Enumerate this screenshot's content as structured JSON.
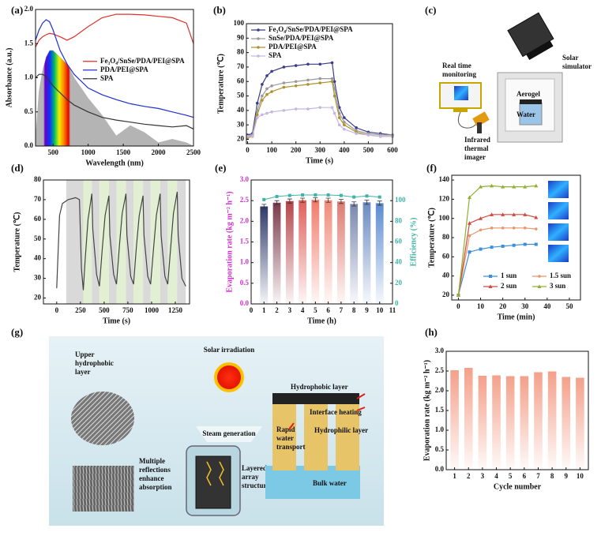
{
  "chart_data": [
    {
      "panel": "(a)",
      "type": "line",
      "xlabel": "Wavelength (nm)",
      "ylabel": "Absorbance (a.u.)",
      "x": [
        250,
        300,
        350,
        400,
        450,
        500,
        600,
        700,
        800,
        1000,
        1200,
        1400,
        1600,
        1800,
        2000,
        2200,
        2400,
        2500
      ],
      "xlim": [
        250,
        2500
      ],
      "xticks": [
        500,
        1000,
        1500,
        2000,
        2500
      ],
      "ylim": [
        0,
        2.0
      ],
      "yticks": [
        {
          "value": 0,
          "label": "0.0"
        },
        {
          "value": 0.5,
          "label": "0.5"
        },
        {
          "value": 1,
          "label": "1.0"
        },
        {
          "value": 1.5,
          "label": "1.5"
        },
        {
          "value": 2,
          "label": "2.0"
        }
      ],
      "area": {
        "color": "#b4b4b4",
        "values": [
          0.1,
          0.8,
          1.1,
          1.3,
          1.4,
          1.4,
          1.3,
          1.2,
          1.0,
          0.7,
          0.45,
          0.15,
          0.3,
          0.2,
          0.05,
          0.1,
          0.05,
          0
        ]
      },
      "legend": "center right",
      "series": [
        {
          "name": "Fe₃O₄/SnSe/PDA/PEI@SPA",
          "color": "#e0302a",
          "values": [
            1.45,
            1.55,
            1.6,
            1.63,
            1.65,
            1.64,
            1.6,
            1.55,
            1.6,
            1.75,
            1.88,
            1.93,
            1.93,
            1.92,
            1.9,
            1.88,
            1.8,
            1.5
          ]
        },
        {
          "name": "PDA/PEI@SPA",
          "color": "#1f2fd0",
          "values": [
            1.55,
            1.7,
            1.8,
            1.85,
            1.82,
            1.7,
            1.4,
            1.2,
            1.05,
            0.85,
            0.75,
            0.68,
            0.62,
            0.58,
            0.55,
            0.5,
            0.45,
            0.42
          ]
        },
        {
          "name": "SPA",
          "color": "#333333",
          "values": [
            1.0,
            1.05,
            1.05,
            1.02,
            0.95,
            0.88,
            0.78,
            0.68,
            0.6,
            0.5,
            0.42,
            0.38,
            0.35,
            0.32,
            0.3,
            0.28,
            0.3,
            0.25
          ]
        }
      ]
    },
    {
      "panel": "(b)",
      "type": "line",
      "xlabel": "Time (s)",
      "ylabel": "Temperature (℃)",
      "x": [
        0,
        20,
        40,
        60,
        80,
        100,
        150,
        200,
        250,
        300,
        350,
        360,
        380,
        400,
        450,
        500,
        550,
        600
      ],
      "xlim": [
        -5,
        600
      ],
      "xticks": [
        0,
        100,
        200,
        300,
        400,
        500,
        600
      ],
      "ylim": [
        17,
        100
      ],
      "yticks": [
        20,
        30,
        40,
        50,
        60,
        70,
        80,
        90,
        100
      ],
      "legend": "upper left",
      "series": [
        {
          "name": "Fe₃O₄/SnSe/PDA/PEI@SPA",
          "color": "#3a3c8c",
          "marker": "circle",
          "values": [
            23,
            24,
            45,
            58,
            64,
            67,
            70,
            71,
            72,
            72,
            73,
            60,
            42,
            35,
            28,
            25,
            24,
            23
          ]
        },
        {
          "name": "SnSe/PDA/PEI@SPA",
          "color": "#9a9a9a",
          "marker": "circle",
          "values": [
            22,
            23,
            40,
            50,
            55,
            57,
            59,
            60,
            61,
            62,
            62,
            55,
            38,
            32,
            26,
            24,
            23,
            23
          ]
        },
        {
          "name": "PDA/PEI@SPA",
          "color": "#b0922a",
          "marker": "circle",
          "values": [
            21,
            22,
            37,
            47,
            51,
            53,
            56,
            57,
            58,
            59,
            60,
            50,
            35,
            30,
            25,
            23,
            22,
            22
          ]
        },
        {
          "name": "SPA",
          "color": "#c7b6e2",
          "marker": "circle",
          "values": [
            22,
            22,
            35,
            37,
            38,
            39,
            40,
            41,
            41,
            42,
            42,
            38,
            30,
            27,
            24,
            23,
            22,
            22
          ]
        }
      ]
    },
    {
      "panel": "(d)",
      "type": "line",
      "xlabel": "Time (s)",
      "ylabel": "Temperature (℃)",
      "x": [
        0,
        30,
        60,
        120,
        200,
        240,
        260,
        280,
        300,
        330,
        370,
        380,
        420,
        450,
        480,
        510,
        550,
        560,
        600,
        630,
        660,
        690,
        730,
        740,
        780,
        810,
        840,
        870,
        910,
        920,
        960,
        990,
        1020,
        1050,
        1090,
        1100,
        1140,
        1170,
        1200,
        1230,
        1270,
        1280,
        1320,
        1360
      ],
      "xlim": [
        -140,
        1400
      ],
      "xticks": [
        0,
        250,
        500,
        750,
        1000,
        1250
      ],
      "ylim": [
        17,
        80
      ],
      "yticks": [
        20,
        30,
        40,
        50,
        60,
        70,
        80
      ],
      "bands": {
        "x": [
          100,
          280,
          370,
          450,
          550,
          630,
          730,
          810,
          910,
          990,
          1090,
          1170,
          1270,
          1360
        ],
        "colors": [
          "#d9d9d9",
          "#e2efd2",
          "#d9d9d9",
          "#e2efd2",
          "#d9d9d9",
          "#e2efd2",
          "#d9d9d9",
          "#e2efd2",
          "#d9d9d9",
          "#e2efd2",
          "#d9d9d9",
          "#e2efd2",
          "#d9d9d9"
        ]
      },
      "series": [
        {
          "color": "#444444",
          "values": [
            25,
            62,
            68,
            70,
            71,
            70,
            35,
            24,
            40,
            60,
            73,
            55,
            32,
            26,
            45,
            62,
            72,
            52,
            32,
            27,
            46,
            63,
            73,
            52,
            31,
            27,
            46,
            62,
            72,
            52,
            31,
            27,
            45,
            62,
            73,
            52,
            31,
            27,
            45,
            63,
            74,
            52,
            30,
            26
          ]
        }
      ]
    },
    {
      "panel": "(e)",
      "type": "bar",
      "xlabel": "Time (h)",
      "ylabel": "Evaporation rate (kg m⁻² h⁻¹)",
      "y2label": "Efficiency (%)",
      "ylabel_color": "#d02fcf",
      "y2_color": "#3fb3a6",
      "x": [
        1,
        2,
        3,
        4,
        5,
        6,
        7,
        8,
        9,
        10
      ],
      "xlim": [
        0,
        11
      ],
      "xticks": [
        0,
        1,
        2,
        3,
        4,
        5,
        6,
        7,
        8,
        9,
        10,
        11
      ],
      "ylim": [
        0,
        3.0
      ],
      "yticks": [
        {
          "value": 0,
          "label": "0.0"
        },
        {
          "value": 0.5,
          "label": "0.5"
        },
        {
          "value": 1,
          "label": "1.0"
        },
        {
          "value": 1.5,
          "label": "1.5"
        },
        {
          "value": 2,
          "label": "2.0"
        },
        {
          "value": 2.5,
          "label": "2.5"
        },
        {
          "value": 3,
          "label": "3.0"
        }
      ],
      "values": [
        2.36,
        2.45,
        2.49,
        2.51,
        2.52,
        2.51,
        2.48,
        2.42,
        2.46,
        2.44
      ],
      "errors": [
        0.05,
        0.05,
        0.05,
        0.05,
        0.05,
        0.05,
        0.05,
        0.05,
        0.05,
        0.05
      ],
      "colors": [
        "#2e3a6b",
        "#7a3a4a",
        "#b5454a",
        "#e0605a",
        "#f07a6a",
        "#f08a78",
        "#e07a70",
        "#7a88b0",
        "#6a8ac0",
        "#5a8ad0"
      ],
      "y2lim": [
        0,
        120
      ],
      "y2ticks": [
        0,
        20,
        40,
        60,
        80,
        100
      ],
      "y2_values": [
        101,
        104,
        105,
        105.5,
        105.5,
        105.5,
        105,
        103.5,
        104.5,
        103.5
      ]
    },
    {
      "panel": "(f)",
      "type": "line",
      "xlabel": "Time (min)",
      "ylabel": "Temperature (℃)",
      "x": [
        0,
        5,
        10,
        15,
        20,
        25,
        30,
        35
      ],
      "xlim": [
        -3,
        55
      ],
      "xticks": [
        0,
        10,
        20,
        30,
        40,
        50
      ],
      "ylim": [
        15,
        145
      ],
      "yticks": [
        20,
        40,
        60,
        80,
        100,
        120,
        140
      ],
      "legend": "lower center",
      "series": [
        {
          "name": "1 sun",
          "color": "#3b8fd8",
          "marker": "square",
          "values": [
            20,
            65,
            68,
            70,
            71,
            72,
            73,
            73
          ]
        },
        {
          "name": "1.5 sun",
          "color": "#e8956a",
          "marker": "circle",
          "values": [
            20,
            82,
            88,
            90,
            90,
            90,
            90,
            89
          ]
        },
        {
          "name": "2 sun",
          "color": "#d04a40",
          "marker": "triangle",
          "values": [
            20,
            95,
            100,
            104,
            104,
            104,
            104,
            101
          ]
        },
        {
          "name": "3 sun",
          "color": "#8fb030",
          "marker": "triangle",
          "values": [
            20,
            122,
            133,
            134,
            133,
            133,
            133,
            134
          ]
        }
      ]
    },
    {
      "panel": "(h)",
      "type": "bar",
      "xlabel": "Cycle number",
      "ylabel": "Evaporation rate (kg m⁻² h⁻¹)",
      "x": [
        1,
        2,
        3,
        4,
        5,
        6,
        7,
        8,
        9,
        10
      ],
      "xlim": [
        0.4,
        10.6
      ],
      "xticks": [
        1,
        2,
        3,
        4,
        5,
        6,
        7,
        8,
        9,
        10
      ],
      "ylim": [
        0,
        3.0
      ],
      "yticks": [
        {
          "value": 0,
          "label": "0.0"
        },
        {
          "value": 0.5,
          "label": "0.5"
        },
        {
          "value": 1,
          "label": "1.0"
        },
        {
          "value": 1.5,
          "label": "1.5"
        },
        {
          "value": 2,
          "label": "2.0"
        },
        {
          "value": 2.5,
          "label": "2.5"
        },
        {
          "value": 3,
          "label": "3.0"
        }
      ],
      "color": "#f4a08a",
      "values": [
        2.52,
        2.58,
        2.38,
        2.39,
        2.37,
        2.37,
        2.47,
        2.49,
        2.35,
        2.33
      ]
    }
  ],
  "panel_c": {
    "panel": "(c)",
    "simulator": [
      "Solar",
      "simulator"
    ],
    "monitor": [
      "Real time",
      "monitoring"
    ],
    "aerogel": "Aerogel",
    "water": "Water",
    "imager": [
      "Infrared",
      "thermal",
      "imager"
    ]
  },
  "panel_g": {
    "panel": "(g)",
    "sun": "Solar irradiation",
    "upper": [
      "Upper",
      "hydrophobic",
      "layer"
    ],
    "steam": "Steam generation",
    "reflect": [
      "Multiple",
      "reflections",
      "enhance",
      "absorption"
    ],
    "array": [
      "Layered",
      "array",
      "structure"
    ],
    "hydrophobic": "Hydrophobic layer",
    "heating": "Interface heating",
    "rapid": [
      "Rapid",
      "water",
      "transport"
    ],
    "hydrophilic": "Hydrophilic layer",
    "bulk": "Bulk water"
  }
}
